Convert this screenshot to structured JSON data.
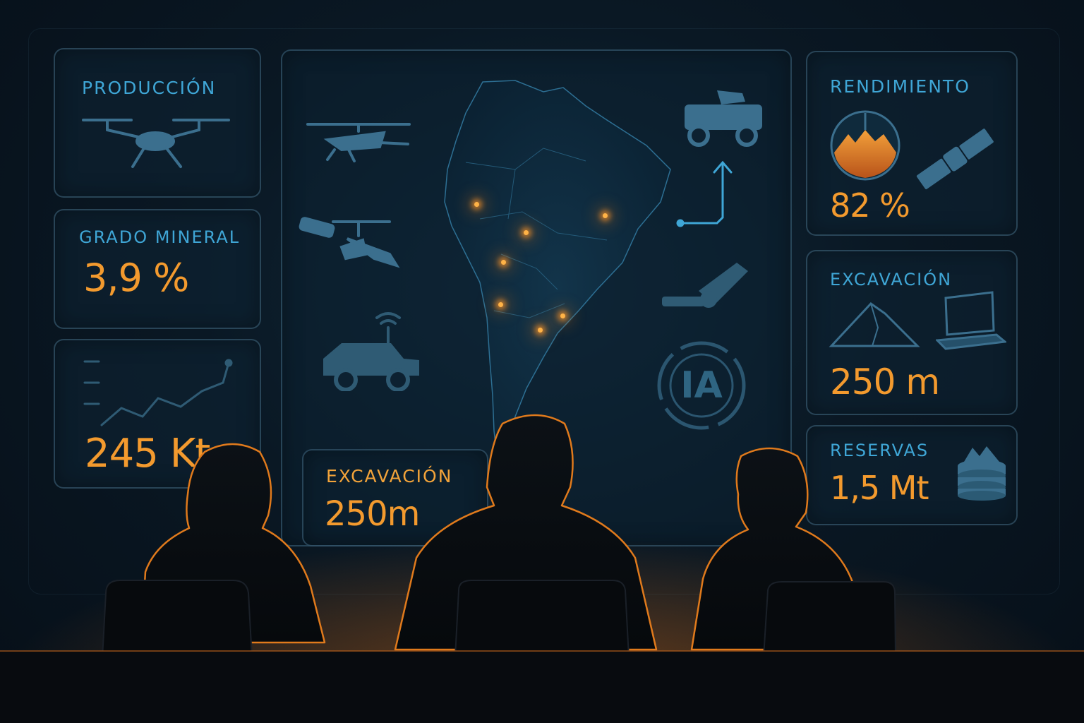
{
  "left_panels": {
    "produccion": {
      "label": "PRODUCCIÓN",
      "icon": "drone-icon"
    },
    "grado": {
      "label": "GRADO MINERAL",
      "value": "3,9 %"
    },
    "output": {
      "value": "245 Kt",
      "icon": "line-chart-icon"
    }
  },
  "center_panel": {
    "icons": [
      "helicopter-icon",
      "rotor-drone-icon",
      "survey-truck-icon",
      "haul-truck-icon",
      "robot-arm-icon",
      "ai-badge-icon"
    ],
    "ai_badge": "IA",
    "excavacion": {
      "label": "EXCAVACIÓN",
      "value": "250m"
    }
  },
  "right_panels": {
    "rendimiento": {
      "label": "RENDIMIENTO",
      "value": "82 %",
      "icon": "gauge-mountain-icon"
    },
    "excavacion": {
      "label": "EXCAVACIÓN",
      "value": "250 m",
      "icon": "terrain-icon"
    },
    "reservas": {
      "label": "RESERVAS",
      "value": "1,5 Mt",
      "icon": "stacked-ore-icon"
    }
  },
  "colors": {
    "accent_blue": "#3fa6d6",
    "accent_orange": "#f39a2e",
    "background": "#0a1824"
  }
}
